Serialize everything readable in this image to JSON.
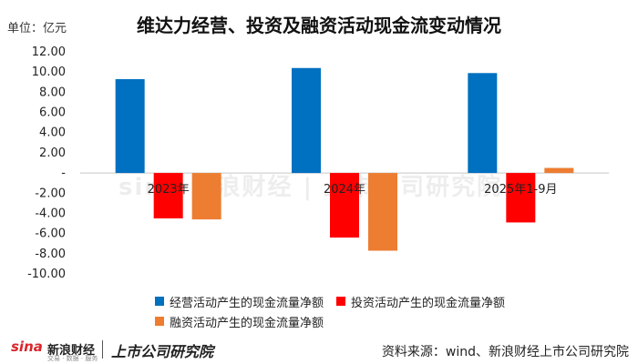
{
  "unit_label": "单位：亿元",
  "title": "维达力经营、投资及融资活动现金流变动情况",
  "source": "资料来源：wind、新浪财经上市公司研究院",
  "logos": {
    "sina_en": "sina",
    "sina_cn": "新浪财经",
    "sina_sub": "交易 · 数据 · 服务",
    "institute": "上市公司研究院"
  },
  "watermark": "sina 新浪财经 | 上市公司研究院",
  "colors": {
    "operating": "#0070C0",
    "investing": "#FF0000",
    "financing": "#ED7D31",
    "axis": "#C8C8C8"
  },
  "chart_data": {
    "type": "bar",
    "categories": [
      "2023年",
      "2024年",
      "2025年1-9月"
    ],
    "series": [
      {
        "name": "经营活动产生的现金流量净额",
        "values": [
          9.3,
          10.4,
          9.9
        ]
      },
      {
        "name": "投资活动产生的现金流量净额",
        "values": [
          -4.5,
          -6.4,
          -4.9
        ]
      },
      {
        "name": "融资活动产生的现金流量净额",
        "values": [
          -4.6,
          -7.7,
          0.5
        ]
      }
    ],
    "ylim": [
      -10,
      12
    ],
    "yticks": [
      "-10.00",
      "-8.00",
      "-6.00",
      "-4.00",
      "-2.00",
      "-",
      "2.00",
      "4.00",
      "6.00",
      "8.00",
      "10.00",
      "12.00"
    ],
    "legend_position": "bottom"
  }
}
